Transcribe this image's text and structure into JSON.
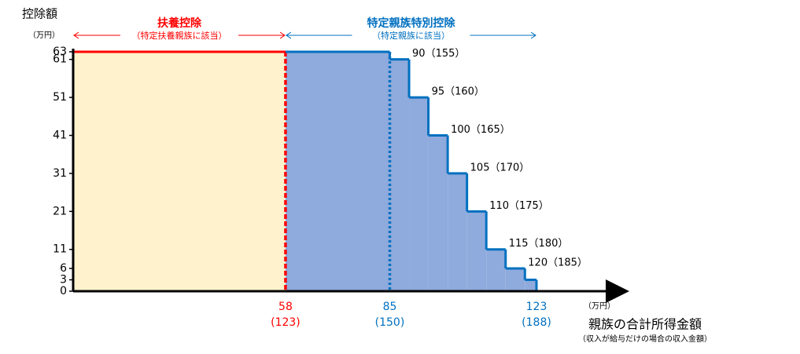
{
  "chart_data": {
    "type": "step",
    "y_label": "控除額",
    "y_unit": "（万円）",
    "x_label": "親族の合計所得金額",
    "x_sublabel": "（収入が給与だけの場合の収入金額）",
    "x_unit": "（万円）",
    "xlim": [
      3,
      145
    ],
    "ylim": [
      0,
      63
    ],
    "yticks": [
      0,
      3,
      6,
      11,
      21,
      31,
      41,
      51,
      61,
      63
    ],
    "xticks": [
      58,
      85,
      123
    ],
    "xtick_sublabels": [
      "(123)",
      "(150)",
      "(188)"
    ],
    "xtick_colors": [
      "#ff0000",
      "#0070c0",
      "#0070c0"
    ],
    "series": [
      {
        "name": "扶養控除",
        "note": "（特定扶養親族に該当）",
        "color": "#ff0000",
        "fill": "#fff2cc",
        "x": [
          3,
          58
        ],
        "values": [
          63,
          63
        ]
      },
      {
        "name": "特定親族特別控除",
        "note": "（特定親族に該当）",
        "color": "#0070c0",
        "fill": "#8faadc",
        "x": [
          58,
          85,
          90,
          95,
          100,
          105,
          110,
          115,
          120,
          123
        ],
        "values": [
          63,
          61,
          51,
          41,
          31,
          21,
          11,
          6,
          3,
          0
        ],
        "step_labels": [
          "90（155）",
          "95（160）",
          "100（165）",
          "105（170）",
          "110（175）",
          "115（180）",
          "120（185）"
        ]
      }
    ]
  }
}
